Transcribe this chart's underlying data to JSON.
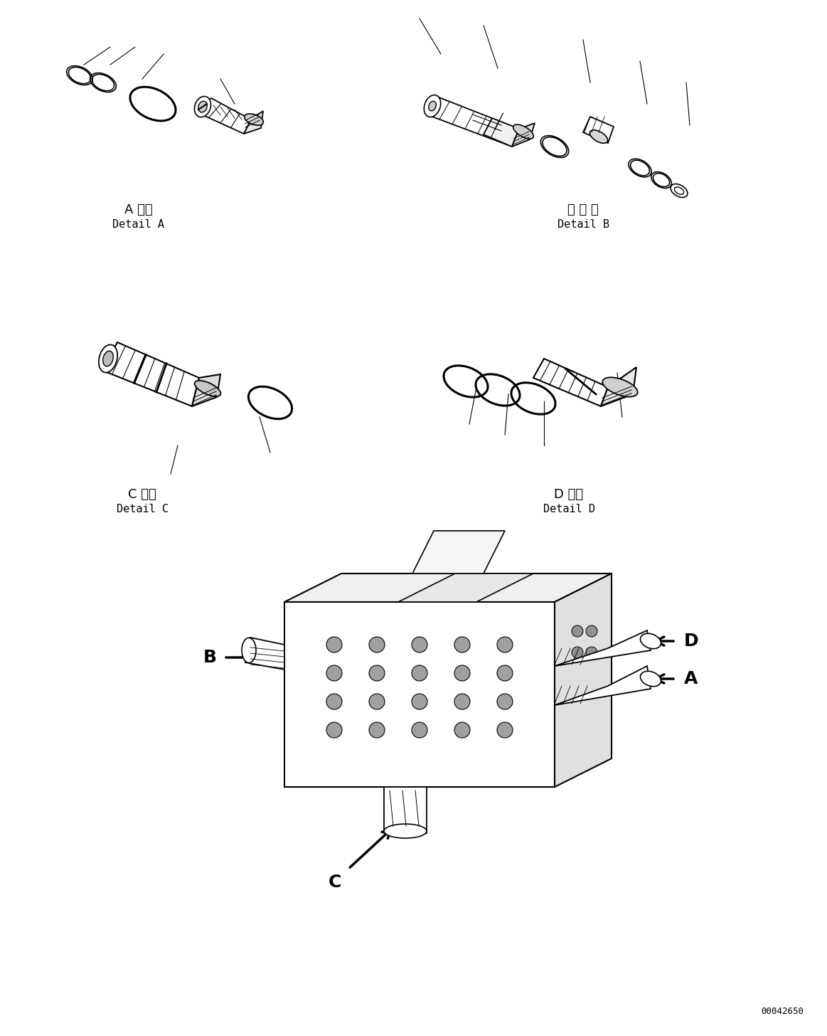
{
  "bg_color": "#ffffff",
  "fig_width": 11.63,
  "fig_height": 14.56,
  "label_A_jp": "A 詳細",
  "label_A_en": "Detail A",
  "label_B_jp": "日 詳 細",
  "label_B_en": "Detail B",
  "label_C_jp": "C 詳細",
  "label_C_en": "Detail C",
  "label_D_jp": "D 詳細",
  "label_D_en": "Detail D",
  "footer": "00042650",
  "lw": 1.0
}
